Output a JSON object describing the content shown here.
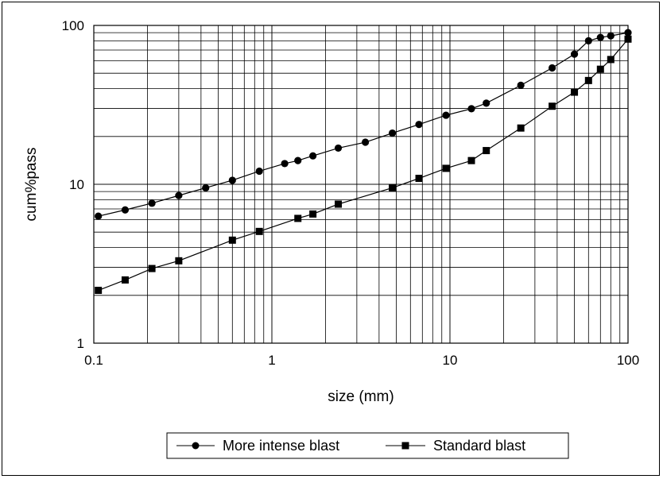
{
  "chart_data": {
    "type": "line",
    "title": "",
    "xlabel": "size (mm)",
    "ylabel": "cum%pass",
    "xscale": "log",
    "yscale": "log",
    "xlim": [
      0.1,
      100
    ],
    "ylim": [
      1,
      100
    ],
    "x_tick_labels": [
      "0.1",
      "1",
      "10",
      "100"
    ],
    "y_tick_labels": [
      "1",
      "10",
      "100"
    ],
    "x_ticks": [
      0.1,
      1,
      10,
      100
    ],
    "y_ticks": [
      1,
      10,
      100
    ],
    "grid": true,
    "legend_position": "bottom",
    "series": [
      {
        "name": "More intense blast",
        "marker": "circle",
        "color": "#000000",
        "x": [
          0.106,
          0.15,
          0.212,
          0.3,
          0.425,
          0.6,
          0.85,
          1.18,
          1.4,
          1.7,
          2.36,
          3.35,
          4.75,
          6.7,
          9.5,
          13.2,
          16,
          25,
          37.5,
          50,
          60,
          70,
          80,
          100
        ],
        "y": [
          6.3,
          6.9,
          7.6,
          8.5,
          9.5,
          10.6,
          12.1,
          13.5,
          14.1,
          15.1,
          16.9,
          18.4,
          21.0,
          23.8,
          27.2,
          29.9,
          32.4,
          42,
          54,
          66,
          80,
          84,
          86,
          90
        ]
      },
      {
        "name": "Standard blast",
        "marker": "square",
        "color": "#000000",
        "x": [
          0.106,
          0.15,
          0.212,
          0.3,
          0.6,
          0.85,
          1.4,
          1.7,
          2.36,
          4.75,
          6.7,
          9.5,
          13.2,
          16,
          25,
          37.5,
          50,
          60,
          70,
          80,
          100
        ],
        "y": [
          2.15,
          2.5,
          2.95,
          3.3,
          4.45,
          5.05,
          6.1,
          6.5,
          7.5,
          9.5,
          10.9,
          12.6,
          14.1,
          16.3,
          22.6,
          31,
          38,
          45,
          53,
          61,
          82
        ]
      }
    ]
  }
}
